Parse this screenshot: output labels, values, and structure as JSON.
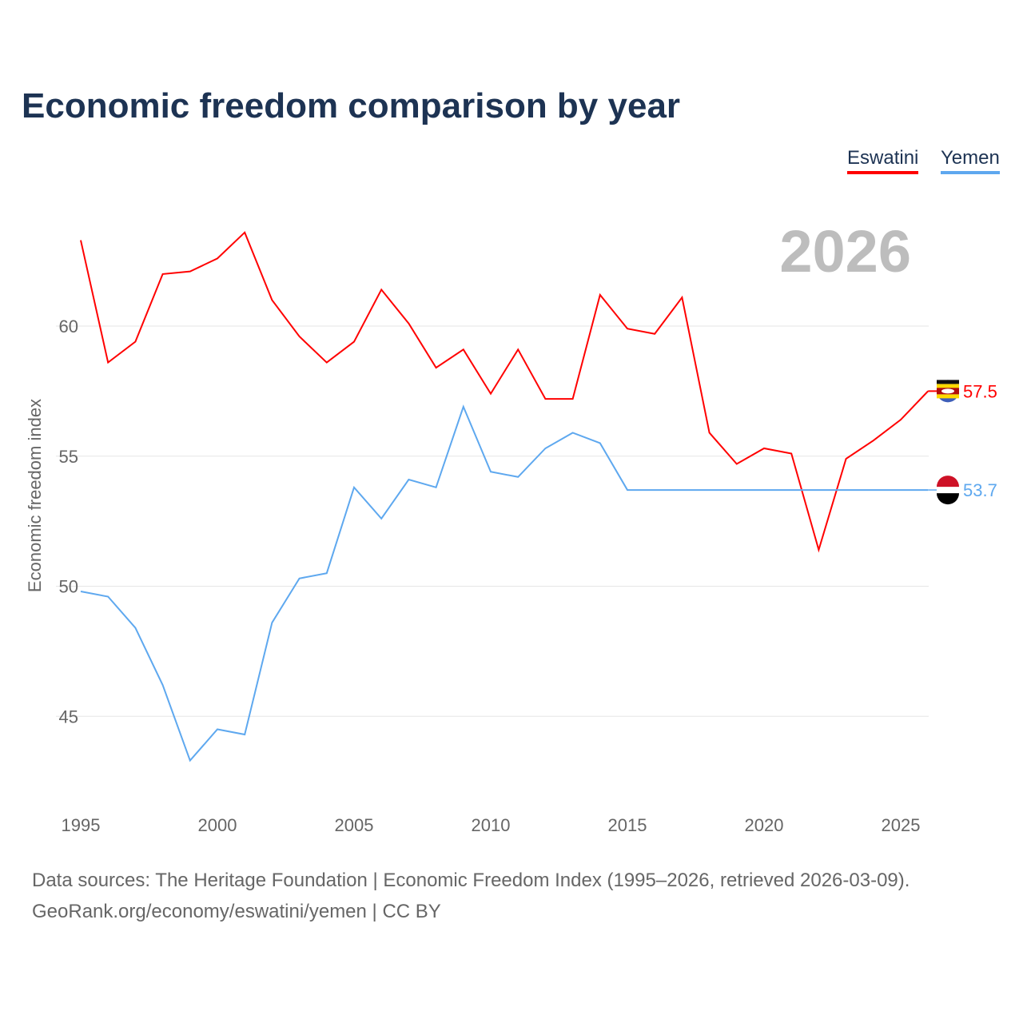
{
  "title": "Economic freedom comparison by year",
  "year_label": "2026",
  "footer": {
    "line1": "Data sources: The Heritage Foundation | Economic Freedom Index (1995–2026, retrieved 2026-03-09).",
    "line2": "GeoRank.org/economy/eswatini/yemen | CC BY"
  },
  "chart_data": {
    "type": "line",
    "title": "Economic freedom comparison by year",
    "ylabel": "Economic freedom index",
    "xlabel": "",
    "xlim": [
      1995,
      2026
    ],
    "ylim": [
      42,
      65
    ],
    "x_ticks": [
      1995,
      2000,
      2005,
      2010,
      2015,
      2020,
      2025
    ],
    "y_ticks": [
      45,
      50,
      55,
      60
    ],
    "grid": true,
    "legend": "top-right",
    "x": [
      1995,
      1996,
      1997,
      1998,
      1999,
      2000,
      2001,
      2002,
      2003,
      2004,
      2005,
      2006,
      2007,
      2008,
      2009,
      2010,
      2011,
      2012,
      2013,
      2014,
      2015,
      2016,
      2017,
      2018,
      2019,
      2020,
      2021,
      2022,
      2023,
      2024,
      2025,
      2026
    ],
    "series": [
      {
        "name": "Eswatini",
        "color": "#ff0000",
        "end_label": "57.5",
        "values": [
          63.3,
          58.6,
          59.4,
          62.0,
          62.1,
          62.6,
          63.6,
          61.0,
          59.6,
          58.6,
          59.4,
          61.4,
          60.1,
          58.4,
          59.1,
          57.4,
          59.1,
          57.2,
          57.2,
          61.2,
          59.9,
          59.7,
          61.1,
          55.9,
          54.7,
          55.3,
          55.1,
          51.4,
          54.9,
          55.6,
          56.4,
          57.5
        ]
      },
      {
        "name": "Yemen",
        "color": "#5ea8ef",
        "end_label": "53.7",
        "values": [
          49.8,
          49.6,
          48.4,
          46.2,
          43.3,
          44.5,
          44.3,
          48.6,
          50.3,
          50.5,
          53.8,
          52.6,
          54.1,
          53.8,
          56.9,
          54.4,
          54.2,
          55.3,
          55.9,
          55.5,
          53.7,
          53.7,
          53.7,
          53.7,
          53.7,
          53.7,
          53.7,
          53.7,
          53.7,
          53.7,
          53.7,
          53.7
        ]
      }
    ]
  }
}
